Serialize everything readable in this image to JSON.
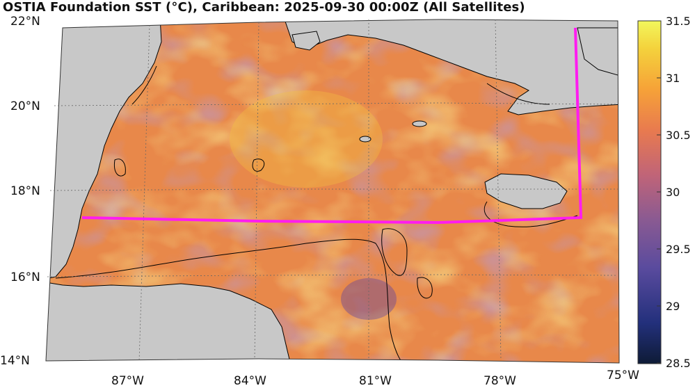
{
  "title": "OSTIA Foundation SST (°C), Caribbean: 2025-09-30 00:00Z (All Satellites)",
  "map": {
    "lat_labels": [
      "22°N",
      "20°N",
      "18°N",
      "16°N",
      "14°N"
    ],
    "lon_labels": [
      "87°W",
      "84°W",
      "81°W",
      "78°W",
      "75°W"
    ]
  },
  "colorbar": {
    "ticks": [
      "31.5",
      "31",
      "30.5",
      "30",
      "29.5",
      "29",
      "28.5"
    ],
    "range": [
      28.5,
      31.5
    ],
    "colors": [
      "#12213d",
      "#2c2d84",
      "#5a4b9e",
      "#8a5a92",
      "#c06478",
      "#e87a4f",
      "#f6a238",
      "#f4d23c",
      "#f2f55a"
    ]
  },
  "colors": {
    "land": "#c8c8c8",
    "box_outline": "#ff1cf0",
    "coastline": "#000000"
  }
}
